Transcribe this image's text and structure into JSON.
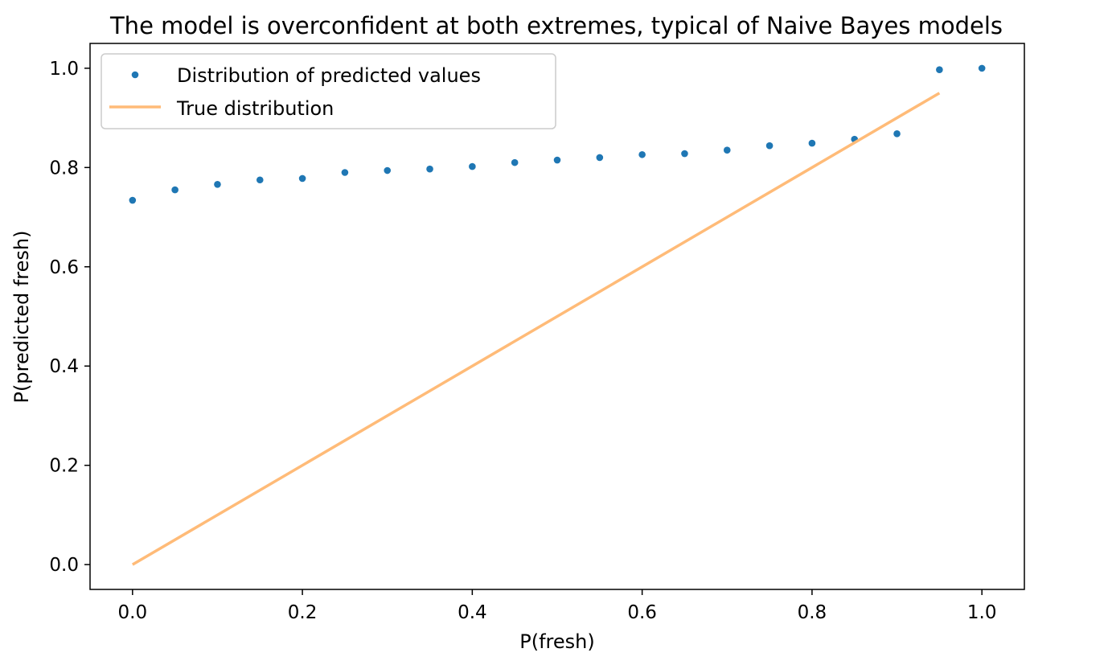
{
  "chart_data": {
    "type": "scatter",
    "title": "The model is overconfident at both extremes, typical of Naive Bayes models",
    "xlabel": "P(fresh)",
    "ylabel": "P(predicted fresh)",
    "xlim": [
      -0.05,
      1.05
    ],
    "ylim": [
      -0.05,
      1.05
    ],
    "x_ticks": [
      "0.0",
      "0.2",
      "0.4",
      "0.6",
      "0.8",
      "1.0"
    ],
    "y_ticks": [
      "0.0",
      "0.2",
      "0.4",
      "0.6",
      "0.8",
      "1.0"
    ],
    "grid": false,
    "legend_position": "upper-left",
    "series": [
      {
        "name": "Distribution of predicted values",
        "kind": "points",
        "color": "#1f77b4",
        "x": [
          0.0,
          0.05,
          0.1,
          0.15,
          0.2,
          0.25,
          0.3,
          0.35,
          0.4,
          0.45,
          0.5,
          0.55,
          0.6,
          0.65,
          0.7,
          0.75,
          0.8,
          0.85,
          0.9,
          0.95,
          1.0
        ],
        "y": [
          0.734,
          0.755,
          0.766,
          0.775,
          0.778,
          0.79,
          0.794,
          0.797,
          0.802,
          0.81,
          0.815,
          0.82,
          0.826,
          0.828,
          0.835,
          0.844,
          0.849,
          0.857,
          0.868,
          0.997,
          1.0
        ]
      },
      {
        "name": "True distribution",
        "kind": "line",
        "color": "#ffbb78",
        "x": [
          0.0,
          0.95
        ],
        "y": [
          0.0,
          0.95
        ]
      }
    ]
  }
}
